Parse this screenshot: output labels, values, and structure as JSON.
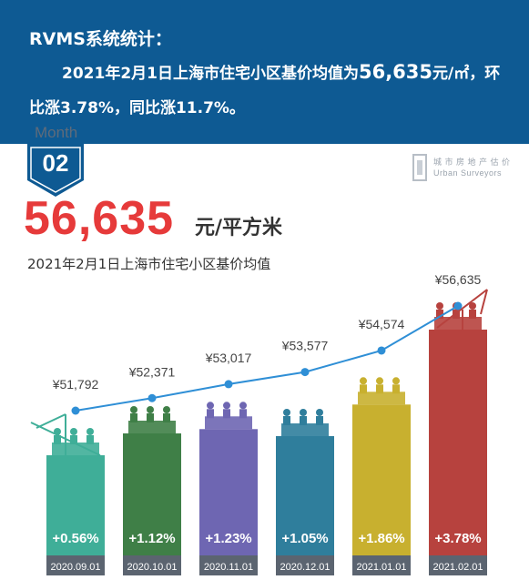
{
  "header": {
    "title": "RVMS系统统计：",
    "line1_prefix": "2021年2月1日上海市住宅小区基价均值为",
    "line1_value": "56,635",
    "line1_suffix": "元/㎡，环",
    "line2": "比涨3.78%，同比涨11.7%。"
  },
  "badge": {
    "month_label": "Month",
    "month_num": "02"
  },
  "logo": {
    "line1": "城 市 房 地 产 估 价",
    "line2": "Urban Surveyors"
  },
  "headline": {
    "price": "56,635",
    "unit": "元/平方米",
    "subtitle": "2021年2月1日上海市住宅小区基价均值"
  },
  "chart_data": {
    "type": "bar",
    "categories": [
      "2020.09.01",
      "2020.10.01",
      "2020.11.01",
      "2020.12.01",
      "2021.01.01",
      "2021.02.01"
    ],
    "line_values": [
      51792,
      52371,
      53017,
      53577,
      54574,
      56635
    ],
    "line_labels": [
      "¥51,792",
      "¥52,371",
      "¥53,017",
      "¥53,577",
      "¥54,574",
      "¥56,635"
    ],
    "bar_labels": [
      "+0.56%",
      "+1.12%",
      "+1.23%",
      "+1.05%",
      "+1.86%",
      "+3.78%"
    ],
    "bar_values": [
      0.56,
      1.12,
      1.23,
      1.05,
      1.86,
      3.78
    ],
    "colors": {
      "bars": [
        "#3fae98",
        "#3f7f47",
        "#6e66b2",
        "#2f7e9c",
        "#c8b02f",
        "#b7423e"
      ],
      "line": "#2f8fd6",
      "date_band": "#5b6470",
      "price": "#e63a3a",
      "header": "#0e5a93"
    }
  }
}
